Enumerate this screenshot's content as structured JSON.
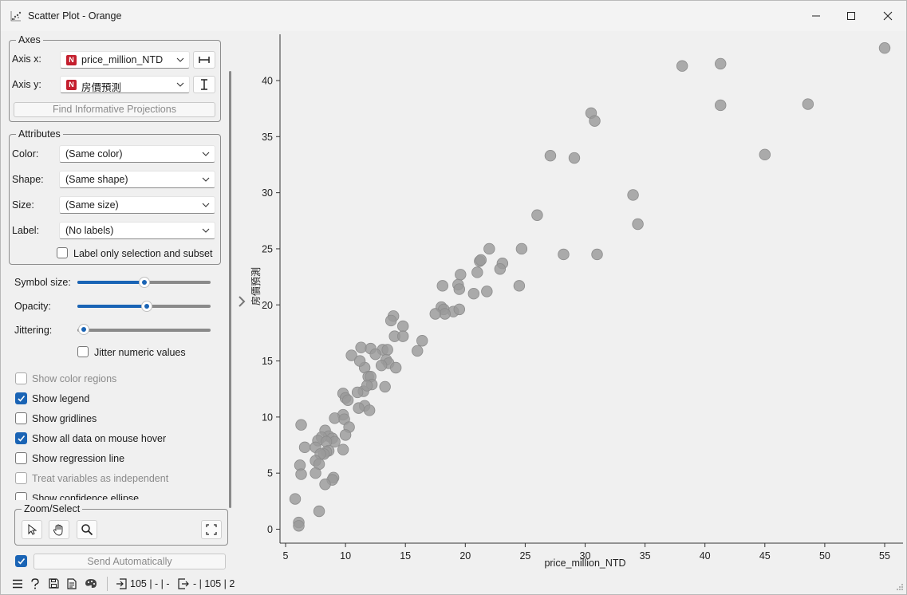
{
  "window": {
    "title": "Scatter Plot - Orange"
  },
  "axes_box": {
    "title": "Axes",
    "axis_x_label": "Axis x:",
    "axis_x_value": "price_million_NTD",
    "axis_y_label": "Axis y:",
    "axis_y_value": "房價預測",
    "find_button": "Find Informative Projections"
  },
  "attributes_box": {
    "title": "Attributes",
    "color_label": "Color:",
    "color_value": "(Same color)",
    "shape_label": "Shape:",
    "shape_value": "(Same shape)",
    "size_label": "Size:",
    "size_value": "(Same size)",
    "label_label": "Label:",
    "label_value": "(No labels)",
    "label_only_selection": "Label only selection and subset"
  },
  "sliders": {
    "symbol_size_label": "Symbol size:",
    "symbol_size_level": 0.5,
    "opacity_label": "Opacity:",
    "opacity_level": 0.52,
    "jittering_label": "Jittering:",
    "jittering_level": 0.0,
    "jitter_numeric": "Jitter numeric values"
  },
  "options": [
    {
      "label": "Show color regions",
      "checked": false,
      "enabled": false
    },
    {
      "label": "Show legend",
      "checked": true,
      "enabled": true
    },
    {
      "label": "Show gridlines",
      "checked": false,
      "enabled": true
    },
    {
      "label": "Show all data on mouse hover",
      "checked": true,
      "enabled": true
    },
    {
      "label": "Show regression line",
      "checked": false,
      "enabled": true
    },
    {
      "label": "Treat variables as independent",
      "checked": false,
      "enabled": false
    },
    {
      "label": "Show confidence ellipse",
      "checked": false,
      "enabled": true
    }
  ],
  "zoom_box": {
    "title": "Zoom/Select"
  },
  "send": {
    "label": "Send Automatically",
    "checked": true
  },
  "status": {
    "input": "105 | - | -",
    "output": "- | 105 | 2"
  },
  "icons": {
    "menu": "hamburger-icon",
    "help": "help-icon",
    "save": "save-icon",
    "report": "report-icon",
    "visual": "palette-icon",
    "input": "input-icon",
    "output": "output-icon",
    "select": "pointer-icon",
    "pan": "hand-icon",
    "zoom": "magnifier-icon",
    "reset": "fit-icon"
  },
  "colors": {
    "accent": "#1a64b5",
    "point": "#9a9a9a",
    "badge": "#c41f2e"
  },
  "chart_data": {
    "type": "scatter",
    "xlabel": "price_million_NTD",
    "ylabel": "房價預測",
    "xlim": [
      4.5,
      56.5
    ],
    "ylim": [
      -0.6,
      44.1
    ],
    "xticks": [
      5,
      10,
      15,
      20,
      25,
      30,
      35,
      40,
      45,
      50,
      55
    ],
    "yticks": [
      0,
      5,
      10,
      15,
      20,
      25,
      30,
      35,
      40
    ],
    "grid": false,
    "points": [
      [
        55.0,
        42.9
      ],
      [
        41.3,
        41.5
      ],
      [
        38.1,
        41.3
      ],
      [
        41.3,
        37.8
      ],
      [
        48.6,
        37.9
      ],
      [
        30.5,
        37.1
      ],
      [
        30.8,
        36.4
      ],
      [
        27.1,
        33.3
      ],
      [
        29.1,
        33.1
      ],
      [
        45.0,
        33.4
      ],
      [
        34.0,
        29.8
      ],
      [
        34.4,
        27.2
      ],
      [
        26.0,
        28.0
      ],
      [
        24.7,
        25.0
      ],
      [
        28.2,
        24.5
      ],
      [
        31.0,
        24.5
      ],
      [
        22.0,
        25.0
      ],
      [
        21.2,
        23.9
      ],
      [
        21.3,
        24.0
      ],
      [
        23.1,
        23.7
      ],
      [
        22.9,
        23.2
      ],
      [
        21.0,
        22.9
      ],
      [
        19.6,
        22.7
      ],
      [
        19.4,
        21.8
      ],
      [
        19.5,
        21.4
      ],
      [
        18.1,
        21.7
      ],
      [
        20.7,
        21.0
      ],
      [
        21.8,
        21.2
      ],
      [
        24.5,
        21.7
      ],
      [
        18.0,
        19.8
      ],
      [
        18.2,
        19.6
      ],
      [
        19.0,
        19.4
      ],
      [
        19.5,
        19.6
      ],
      [
        18.3,
        19.2
      ],
      [
        17.5,
        19.2
      ],
      [
        14.0,
        19.0
      ],
      [
        13.8,
        18.6
      ],
      [
        14.8,
        18.1
      ],
      [
        14.1,
        17.2
      ],
      [
        14.8,
        17.2
      ],
      [
        16.4,
        16.8
      ],
      [
        16.0,
        15.9
      ],
      [
        11.3,
        16.2
      ],
      [
        12.1,
        16.1
      ],
      [
        13.1,
        16.0
      ],
      [
        13.5,
        16.0
      ],
      [
        10.5,
        15.5
      ],
      [
        12.5,
        15.6
      ],
      [
        13.4,
        15.1
      ],
      [
        13.6,
        14.8
      ],
      [
        13.0,
        14.6
      ],
      [
        14.2,
        14.4
      ],
      [
        11.6,
        14.4
      ],
      [
        11.2,
        15.0
      ],
      [
        11.9,
        13.6
      ],
      [
        12.1,
        13.6
      ],
      [
        12.2,
        12.9
      ],
      [
        11.5,
        12.3
      ],
      [
        11.0,
        12.2
      ],
      [
        11.8,
        12.8
      ],
      [
        13.3,
        12.7
      ],
      [
        9.8,
        12.1
      ],
      [
        10.0,
        11.7
      ],
      [
        10.2,
        11.5
      ],
      [
        11.6,
        11.0
      ],
      [
        11.1,
        10.8
      ],
      [
        12.0,
        10.6
      ],
      [
        9.8,
        10.2
      ],
      [
        9.1,
        9.9
      ],
      [
        9.9,
        9.8
      ],
      [
        10.3,
        9.1
      ],
      [
        10.0,
        8.4
      ],
      [
        6.3,
        9.3
      ],
      [
        8.3,
        8.8
      ],
      [
        8.6,
        8.3
      ],
      [
        8.0,
        8.2
      ],
      [
        8.9,
        8.1
      ],
      [
        9.1,
        7.8
      ],
      [
        7.7,
        7.9
      ],
      [
        8.4,
        7.8
      ],
      [
        6.6,
        7.3
      ],
      [
        7.5,
        7.3
      ],
      [
        9.8,
        7.1
      ],
      [
        8.6,
        7.0
      ],
      [
        8.4,
        6.9
      ],
      [
        8.2,
        6.7
      ],
      [
        7.9,
        6.7
      ],
      [
        7.5,
        6.1
      ],
      [
        7.8,
        5.8
      ],
      [
        6.2,
        5.7
      ],
      [
        7.5,
        5.0
      ],
      [
        6.3,
        4.9
      ],
      [
        9.0,
        4.6
      ],
      [
        8.9,
        4.4
      ],
      [
        8.3,
        4.0
      ],
      [
        5.8,
        2.7
      ],
      [
        7.8,
        1.6
      ],
      [
        6.1,
        0.6
      ],
      [
        6.1,
        0.3
      ]
    ]
  }
}
